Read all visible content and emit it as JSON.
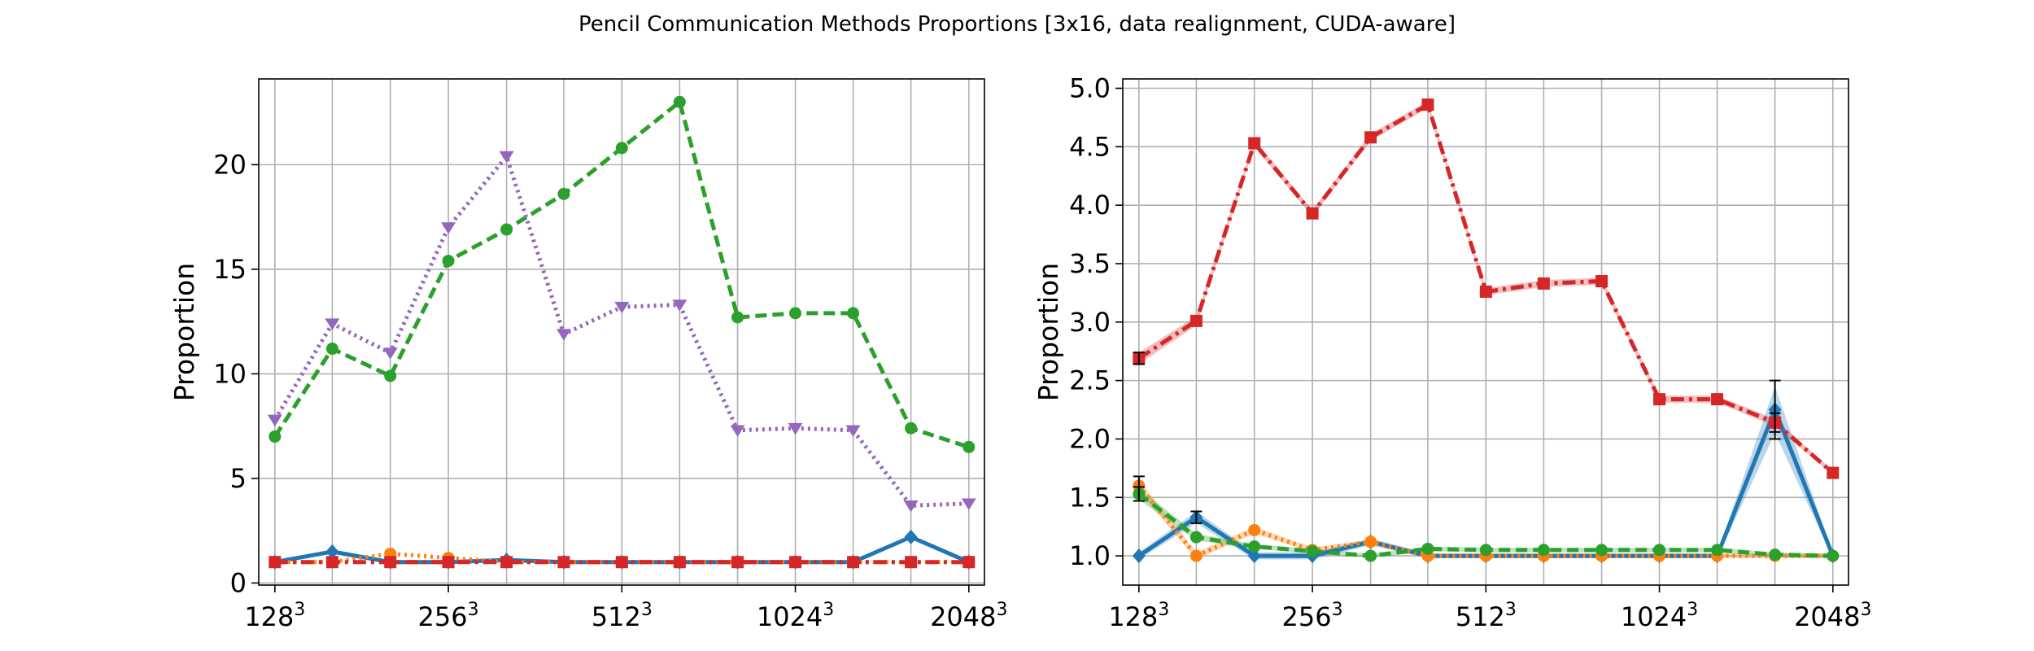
{
  "figure": {
    "title": "Pencil Communication Methods Proportions [3x16, data realignment, CUDA-aware]"
  },
  "chart_data": [
    {
      "type": "line",
      "ylabel": "Proportion",
      "xlabel": "",
      "x": [
        128,
        161,
        203,
        256,
        323,
        406,
        512,
        645,
        813,
        1024,
        1290,
        1625,
        2048
      ],
      "xtick_values": [
        128,
        256,
        512,
        1024,
        2048
      ],
      "xtick_labels": [
        {
          "base": "128",
          "exp": "3"
        },
        {
          "base": "256",
          "exp": "3"
        },
        {
          "base": "512",
          "exp": "3"
        },
        {
          "base": "1024",
          "exp": "3"
        },
        {
          "base": "2048",
          "exp": "3"
        }
      ],
      "xscale": "log",
      "xlim": [
        120,
        2180
      ],
      "ylim": [
        -0.1,
        24.1
      ],
      "yticks": [
        0,
        5,
        10,
        15,
        20
      ],
      "ytick_labels": [
        "0",
        "5",
        "10",
        "15",
        "20"
      ],
      "grid": true,
      "series": [
        {
          "color": "#1f77b4",
          "linestyle": "solid",
          "marker": "diamond",
          "values": [
            1.0,
            1.5,
            1.0,
            1.0,
            1.1,
            1.0,
            1.0,
            1.0,
            1.0,
            1.0,
            1.0,
            2.2,
            1.0
          ]
        },
        {
          "color": "#ff7f0e",
          "linestyle": "dotted",
          "marker": "circle",
          "values": [
            1.0,
            1.0,
            1.4,
            1.2,
            1.0,
            1.0,
            1.0,
            1.0,
            1.0,
            1.0,
            1.0,
            1.0,
            1.0
          ]
        },
        {
          "color": "#2ca02c",
          "linestyle": "dashed",
          "marker": "circle",
          "values": [
            7.0,
            11.2,
            9.9,
            15.4,
            16.9,
            18.6,
            20.8,
            23.0,
            12.7,
            12.9,
            12.9,
            7.4,
            6.5
          ]
        },
        {
          "color": "#d62728",
          "linestyle": "dashdot",
          "marker": "square",
          "values": [
            1.0,
            1.0,
            1.0,
            1.0,
            1.0,
            1.0,
            1.0,
            1.0,
            1.0,
            1.0,
            1.0,
            1.0,
            1.0
          ]
        },
        {
          "color": "#9467bd",
          "linestyle": "dotted",
          "marker": "triangle-down",
          "values": [
            7.8,
            12.4,
            11.0,
            17.0,
            20.4,
            11.9,
            13.2,
            13.3,
            7.3,
            7.4,
            7.3,
            3.7,
            3.8
          ]
        }
      ]
    },
    {
      "type": "line",
      "ylabel": "Proportion",
      "xlabel": "",
      "x": [
        128,
        161,
        203,
        256,
        323,
        406,
        512,
        645,
        813,
        1024,
        1290,
        1625,
        2048
      ],
      "xtick_values": [
        128,
        256,
        512,
        1024,
        2048
      ],
      "xtick_labels": [
        {
          "base": "128",
          "exp": "3"
        },
        {
          "base": "256",
          "exp": "3"
        },
        {
          "base": "512",
          "exp": "3"
        },
        {
          "base": "1024",
          "exp": "3"
        },
        {
          "base": "2048",
          "exp": "3"
        }
      ],
      "xscale": "log",
      "xlim": [
        120,
        2180
      ],
      "ylim": [
        0.75,
        5.08
      ],
      "yticks": [
        1.0,
        1.5,
        2.0,
        2.5,
        3.0,
        3.5,
        4.0,
        4.5,
        5.0
      ],
      "ytick_labels": [
        "1.0",
        "1.5",
        "2.0",
        "2.5",
        "3.0",
        "3.5",
        "4.0",
        "4.5",
        "5.0"
      ],
      "grid": true,
      "series": [
        {
          "color": "#1f77b4",
          "linestyle": "solid",
          "marker": "diamond",
          "values": [
            1.0,
            1.33,
            1.0,
            1.0,
            1.12,
            1.0,
            1.0,
            1.0,
            1.0,
            1.0,
            1.0,
            2.25,
            1.0
          ],
          "band": [
            0.03,
            0.05,
            0.03,
            0.03,
            0.03,
            0.02,
            0.02,
            0.02,
            0.02,
            0.02,
            0.02,
            0.2,
            0.02
          ],
          "errorbars": [
            null,
            0.05,
            null,
            null,
            null,
            null,
            null,
            null,
            null,
            null,
            null,
            0.25,
            null
          ]
        },
        {
          "color": "#ff7f0e",
          "linestyle": "dotted",
          "marker": "circle",
          "values": [
            1.6,
            1.0,
            1.22,
            1.05,
            1.12,
            1.0,
            1.0,
            1.0,
            1.0,
            1.0,
            1.0,
            1.0,
            1.0
          ],
          "band": [
            0.05,
            0.03,
            0.03,
            0.02,
            0.02,
            0.02,
            0.02,
            0.02,
            0.02,
            0.02,
            0.02,
            0.02,
            0.02
          ],
          "errorbars": [
            0.08,
            null,
            null,
            null,
            null,
            null,
            null,
            null,
            null,
            null,
            null,
            null,
            null
          ]
        },
        {
          "color": "#2ca02c",
          "linestyle": "dashed",
          "marker": "circle",
          "values": [
            1.53,
            1.16,
            1.08,
            1.04,
            1.0,
            1.06,
            1.05,
            1.05,
            1.05,
            1.05,
            1.05,
            1.01,
            1.0
          ],
          "band": [
            0.05,
            0.03,
            0.02,
            0.02,
            0.02,
            0.02,
            0.02,
            0.02,
            0.02,
            0.02,
            0.02,
            0.02,
            0.02
          ],
          "errorbars": [
            0.06,
            null,
            null,
            null,
            null,
            null,
            null,
            null,
            null,
            null,
            null,
            null,
            null
          ]
        },
        {
          "color": "#d62728",
          "linestyle": "dashdot",
          "marker": "square",
          "values": [
            2.69,
            3.01,
            4.53,
            3.93,
            4.58,
            4.86,
            3.26,
            3.33,
            3.35,
            2.34,
            2.34,
            2.14,
            1.71
          ],
          "band": [
            0.05,
            0.04,
            0.03,
            0.03,
            0.03,
            0.03,
            0.03,
            0.03,
            0.03,
            0.03,
            0.03,
            0.03,
            0.02
          ],
          "errorbars": [
            0.05,
            null,
            null,
            null,
            null,
            null,
            null,
            null,
            null,
            null,
            null,
            0.08,
            null
          ]
        }
      ]
    }
  ]
}
